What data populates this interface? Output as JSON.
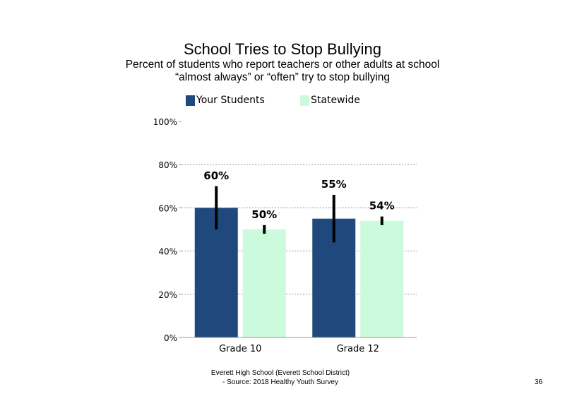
{
  "slide": {
    "title": "School Tries to Stop Bullying",
    "subtitle_line1": "Percent of students who report teachers or other adults at school",
    "subtitle_line2": "“almost always” or “often” try to stop bullying",
    "footer_line1": "Everett High School (Everett School District)",
    "footer_line2": "- Source: 2018 Healthy Youth Survey",
    "page_number": "36"
  },
  "chart_data": {
    "type": "bar",
    "categories": [
      "Grade 10",
      "Grade 12"
    ],
    "series": [
      {
        "name": "Your Students",
        "color": "#1f497d",
        "values": [
          60,
          55
        ],
        "labels": [
          "60%",
          "55%"
        ],
        "error": [
          [
            50,
            70
          ],
          [
            44,
            66
          ]
        ]
      },
      {
        "name": "Statewide",
        "color": "#ccfadc",
        "values": [
          50,
          54
        ],
        "labels": [
          "50%",
          "54%"
        ],
        "error": [
          [
            48,
            52
          ],
          [
            52,
            56
          ]
        ]
      }
    ],
    "ylim": [
      0,
      100
    ],
    "yticks": [
      0,
      20,
      40,
      60,
      80,
      100
    ],
    "ytick_labels": [
      "0%",
      "20%",
      "40%",
      "60%",
      "80%",
      "100%"
    ],
    "grid": "dotted horizontal",
    "legend": "top"
  }
}
